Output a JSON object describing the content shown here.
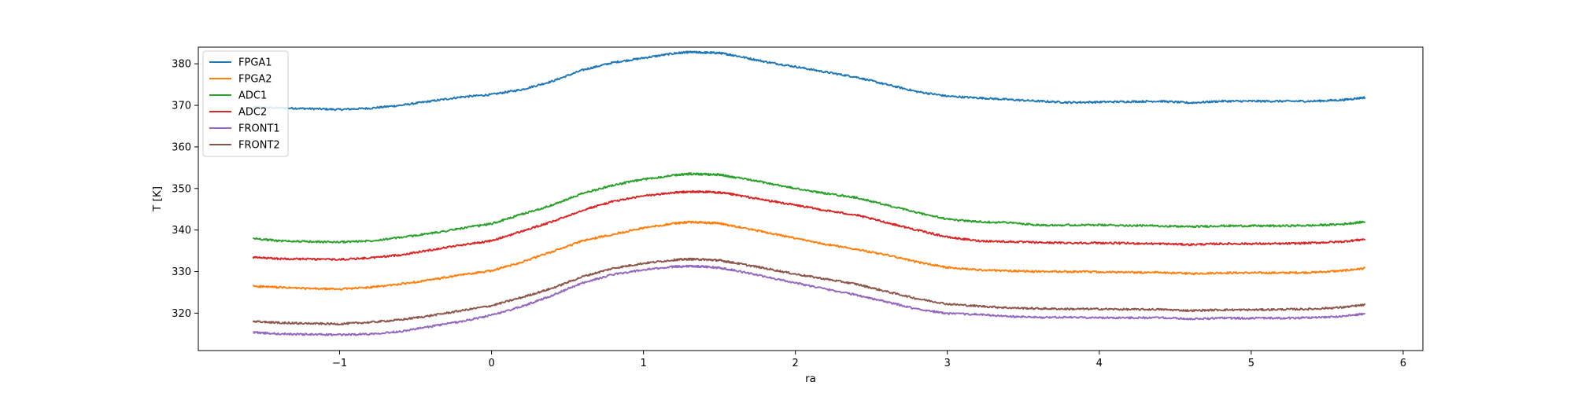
{
  "chart_data": {
    "type": "line",
    "title": "",
    "xlabel": "ra",
    "ylabel": "T [K]",
    "xlim": [
      -1.93,
      6.13
    ],
    "ylim": [
      311.0,
      384.0
    ],
    "xticks": [
      -1,
      0,
      1,
      2,
      3,
      4,
      5,
      6
    ],
    "xtick_labels": [
      "−1",
      "0",
      "1",
      "2",
      "3",
      "4",
      "5",
      "6"
    ],
    "yticks": [
      320,
      330,
      340,
      350,
      360,
      370,
      380
    ],
    "ytick_labels": [
      "320",
      "330",
      "340",
      "350",
      "360",
      "370",
      "380"
    ],
    "grid": false,
    "legend_position": "upper-left",
    "series": [
      {
        "name": "FPGA1",
        "color": "#1f77b4",
        "x": [
          -1.57,
          -1.4,
          -1.2,
          -1.0,
          -0.8,
          -0.6,
          -0.4,
          -0.2,
          0.0,
          0.2,
          0.4,
          0.6,
          0.8,
          1.0,
          1.2,
          1.3,
          1.4,
          1.5,
          1.6,
          1.8,
          2.0,
          2.2,
          2.4,
          2.6,
          2.8,
          3.0,
          3.2,
          3.4,
          3.6,
          3.8,
          4.0,
          4.2,
          4.4,
          4.6,
          4.8,
          5.0,
          5.2,
          5.4,
          5.6,
          5.75
        ],
        "y": [
          369.5,
          369.4,
          369.2,
          369.0,
          369.3,
          370.0,
          371.0,
          372.0,
          372.6,
          373.8,
          375.8,
          378.5,
          380.3,
          381.4,
          382.5,
          382.8,
          382.7,
          382.6,
          382.0,
          380.5,
          379.3,
          378.0,
          376.8,
          375.0,
          373.3,
          372.2,
          371.8,
          371.4,
          371.0,
          370.7,
          370.8,
          370.9,
          371.0,
          370.6,
          371.0,
          371.0,
          371.0,
          371.0,
          371.3,
          371.9
        ]
      },
      {
        "name": "FPGA2",
        "color": "#ff7f0e",
        "x": [
          -1.57,
          -1.4,
          -1.2,
          -1.0,
          -0.8,
          -0.6,
          -0.4,
          -0.2,
          0.0,
          0.2,
          0.4,
          0.6,
          0.8,
          1.0,
          1.2,
          1.3,
          1.4,
          1.5,
          1.6,
          1.8,
          2.0,
          2.2,
          2.4,
          2.6,
          2.8,
          3.0,
          3.2,
          3.4,
          3.6,
          3.8,
          4.0,
          4.2,
          4.4,
          4.6,
          4.8,
          5.0,
          5.2,
          5.4,
          5.6,
          5.75
        ],
        "y": [
          326.5,
          326.2,
          325.9,
          325.8,
          326.2,
          327.0,
          328.0,
          329.2,
          330.2,
          332.3,
          334.8,
          337.4,
          339.0,
          340.5,
          341.6,
          341.9,
          341.8,
          341.6,
          340.9,
          339.5,
          338.0,
          336.6,
          335.4,
          334.0,
          332.3,
          331.0,
          330.4,
          330.2,
          330.0,
          330.0,
          329.9,
          329.8,
          329.8,
          329.5,
          329.7,
          329.7,
          329.7,
          329.8,
          330.2,
          330.8
        ]
      },
      {
        "name": "ADC1",
        "color": "#2ca02c",
        "x": [
          -1.57,
          -1.4,
          -1.2,
          -1.0,
          -0.8,
          -0.6,
          -0.4,
          -0.2,
          0.0,
          0.2,
          0.4,
          0.6,
          0.8,
          1.0,
          1.2,
          1.3,
          1.4,
          1.5,
          1.6,
          1.8,
          2.0,
          2.2,
          2.4,
          2.6,
          2.8,
          3.0,
          3.2,
          3.4,
          3.6,
          3.8,
          4.0,
          4.2,
          4.4,
          4.6,
          4.8,
          5.0,
          5.2,
          5.4,
          5.6,
          5.75
        ],
        "y": [
          338.0,
          337.4,
          337.2,
          337.1,
          337.4,
          338.2,
          339.2,
          340.4,
          341.5,
          343.8,
          346.0,
          348.8,
          350.8,
          352.2,
          353.2,
          353.5,
          353.4,
          353.3,
          352.7,
          351.4,
          350.0,
          348.8,
          347.8,
          346.0,
          344.2,
          342.6,
          342.0,
          341.8,
          341.2,
          341.2,
          341.2,
          341.1,
          341.0,
          340.8,
          341.0,
          341.0,
          341.0,
          341.1,
          341.4,
          342.0
        ]
      },
      {
        "name": "ADC2",
        "color": "#d62728",
        "x": [
          -1.57,
          -1.4,
          -1.2,
          -1.0,
          -0.8,
          -0.6,
          -0.4,
          -0.2,
          0.0,
          0.2,
          0.4,
          0.6,
          0.8,
          1.0,
          1.2,
          1.3,
          1.4,
          1.5,
          1.6,
          1.8,
          2.0,
          2.2,
          2.4,
          2.6,
          2.8,
          3.0,
          3.2,
          3.4,
          3.6,
          3.8,
          4.0,
          4.2,
          4.4,
          4.6,
          4.8,
          5.0,
          5.2,
          5.4,
          5.6,
          5.75
        ],
        "y": [
          333.4,
          333.1,
          333.0,
          332.9,
          333.3,
          334.0,
          335.2,
          336.4,
          337.4,
          339.7,
          342.0,
          344.8,
          346.9,
          348.2,
          349.0,
          349.2,
          349.2,
          349.0,
          348.5,
          347.2,
          346.0,
          344.7,
          343.6,
          341.8,
          340.0,
          338.3,
          337.4,
          337.2,
          337.0,
          336.9,
          336.9,
          336.8,
          336.7,
          336.5,
          336.7,
          336.7,
          336.7,
          336.9,
          337.2,
          337.8
        ]
      },
      {
        "name": "FRONT1",
        "color": "#9467bd",
        "x": [
          -1.57,
          -1.4,
          -1.2,
          -1.0,
          -0.8,
          -0.6,
          -0.4,
          -0.2,
          0.0,
          0.2,
          0.4,
          0.6,
          0.8,
          1.0,
          1.2,
          1.3,
          1.4,
          1.5,
          1.6,
          1.8,
          2.0,
          2.2,
          2.4,
          2.6,
          2.8,
          3.0,
          3.2,
          3.4,
          3.6,
          3.8,
          4.0,
          4.2,
          4.4,
          4.6,
          4.8,
          5.0,
          5.2,
          5.4,
          5.6,
          5.75
        ],
        "y": [
          315.4,
          315.0,
          314.9,
          314.8,
          315.0,
          315.6,
          316.8,
          318.0,
          319.5,
          321.6,
          324.3,
          327.3,
          329.3,
          330.4,
          331.2,
          331.3,
          331.2,
          330.9,
          330.3,
          328.8,
          327.3,
          325.8,
          324.4,
          322.7,
          321.0,
          319.9,
          319.7,
          319.2,
          319.0,
          319.0,
          318.9,
          318.9,
          318.9,
          318.6,
          318.8,
          318.8,
          318.8,
          318.9,
          319.2,
          319.9
        ]
      },
      {
        "name": "FRONT2",
        "color": "#8c564b",
        "x": [
          -1.57,
          -1.4,
          -1.2,
          -1.0,
          -0.8,
          -0.6,
          -0.4,
          -0.2,
          0.0,
          0.2,
          0.4,
          0.6,
          0.8,
          1.0,
          1.2,
          1.3,
          1.4,
          1.5,
          1.6,
          1.8,
          2.0,
          2.2,
          2.4,
          2.6,
          2.8,
          3.0,
          3.2,
          3.4,
          3.6,
          3.8,
          4.0,
          4.2,
          4.4,
          4.6,
          4.8,
          5.0,
          5.2,
          5.4,
          5.6,
          5.75
        ],
        "y": [
          318.0,
          317.7,
          317.5,
          317.4,
          317.8,
          318.4,
          319.4,
          320.6,
          321.8,
          323.8,
          326.0,
          328.8,
          330.8,
          332.0,
          332.8,
          333.0,
          332.9,
          332.7,
          332.1,
          330.8,
          329.4,
          328.2,
          327.0,
          325.2,
          323.5,
          322.2,
          321.7,
          321.3,
          321.1,
          321.0,
          321.0,
          320.9,
          320.9,
          320.6,
          320.8,
          320.8,
          320.9,
          321.0,
          321.4,
          322.0
        ]
      }
    ]
  }
}
